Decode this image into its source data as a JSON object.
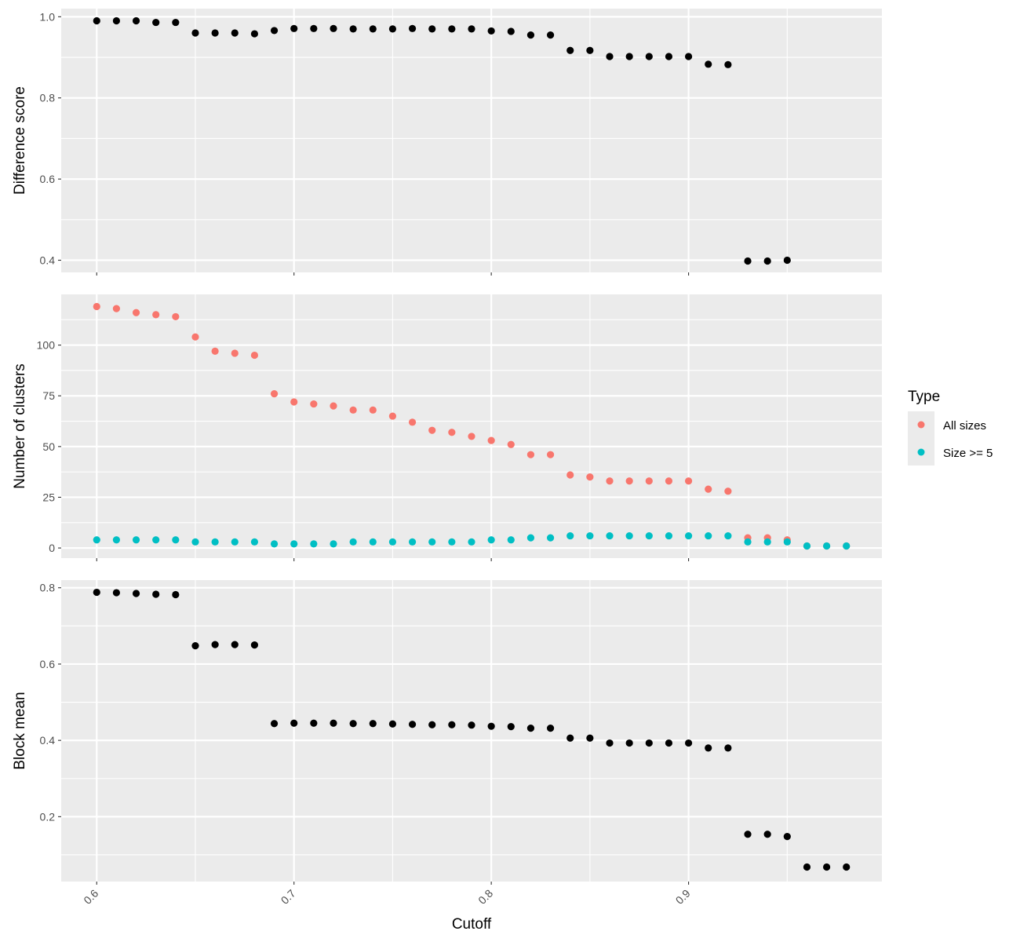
{
  "chart_data": {
    "type": "scatter",
    "layout": "faceted-vertical",
    "shared_x": {
      "label": "Cutoff",
      "range": [
        0.582,
        0.998
      ],
      "ticks": [
        0.6,
        0.7,
        0.8,
        0.9
      ],
      "tick_labels": [
        "0.6",
        "0.7",
        "0.8",
        "0.9"
      ]
    },
    "panels": [
      {
        "id": "difference",
        "ylabel": "Difference score",
        "ylim": [
          0.37,
          1.02
        ],
        "yticks": [
          0.4,
          0.6,
          0.8,
          1.0
        ],
        "ytick_labels": [
          "0.4",
          "0.6",
          "0.8",
          "1.0"
        ],
        "series": [
          {
            "color": "#000000",
            "points": [
              [
                0.6,
                0.99
              ],
              [
                0.61,
                0.99
              ],
              [
                0.62,
                0.99
              ],
              [
                0.63,
                0.986
              ],
              [
                0.64,
                0.986
              ],
              [
                0.65,
                0.96
              ],
              [
                0.66,
                0.96
              ],
              [
                0.67,
                0.96
              ],
              [
                0.68,
                0.958
              ],
              [
                0.69,
                0.966
              ],
              [
                0.7,
                0.971
              ],
              [
                0.71,
                0.971
              ],
              [
                0.72,
                0.971
              ],
              [
                0.73,
                0.97
              ],
              [
                0.74,
                0.97
              ],
              [
                0.75,
                0.97
              ],
              [
                0.76,
                0.971
              ],
              [
                0.77,
                0.97
              ],
              [
                0.78,
                0.97
              ],
              [
                0.79,
                0.97
              ],
              [
                0.8,
                0.965
              ],
              [
                0.81,
                0.964
              ],
              [
                0.82,
                0.955
              ],
              [
                0.83,
                0.955
              ],
              [
                0.84,
                0.917
              ],
              [
                0.85,
                0.917
              ],
              [
                0.86,
                0.902
              ],
              [
                0.87,
                0.902
              ],
              [
                0.88,
                0.902
              ],
              [
                0.89,
                0.902
              ],
              [
                0.9,
                0.902
              ],
              [
                0.91,
                0.883
              ],
              [
                0.92,
                0.882
              ],
              [
                0.93,
                0.398
              ],
              [
                0.94,
                0.398
              ],
              [
                0.95,
                0.4
              ]
            ]
          }
        ]
      },
      {
        "id": "clusters",
        "ylabel": "Number of clusters",
        "ylim": [
          -5,
          125
        ],
        "yticks": [
          0,
          25,
          50,
          75,
          100
        ],
        "ytick_labels": [
          "0",
          "25",
          "50",
          "75",
          "100"
        ],
        "series": [
          {
            "name": "All sizes",
            "color": "#F8766D",
            "points": [
              [
                0.6,
                119
              ],
              [
                0.61,
                118
              ],
              [
                0.62,
                116
              ],
              [
                0.63,
                115
              ],
              [
                0.64,
                114
              ],
              [
                0.65,
                104
              ],
              [
                0.66,
                97
              ],
              [
                0.67,
                96
              ],
              [
                0.68,
                95
              ],
              [
                0.69,
                76
              ],
              [
                0.7,
                72
              ],
              [
                0.71,
                71
              ],
              [
                0.72,
                70
              ],
              [
                0.73,
                68
              ],
              [
                0.74,
                68
              ],
              [
                0.75,
                65
              ],
              [
                0.76,
                62
              ],
              [
                0.77,
                58
              ],
              [
                0.78,
                57
              ],
              [
                0.79,
                55
              ],
              [
                0.8,
                53
              ],
              [
                0.81,
                51
              ],
              [
                0.82,
                46
              ],
              [
                0.83,
                46
              ],
              [
                0.84,
                36
              ],
              [
                0.85,
                35
              ],
              [
                0.86,
                33
              ],
              [
                0.87,
                33
              ],
              [
                0.88,
                33
              ],
              [
                0.89,
                33
              ],
              [
                0.9,
                33
              ],
              [
                0.91,
                29
              ],
              [
                0.92,
                28
              ],
              [
                0.93,
                5
              ],
              [
                0.94,
                5
              ],
              [
                0.95,
                4
              ],
              [
                0.96,
                1
              ],
              [
                0.97,
                1
              ],
              [
                0.98,
                1
              ]
            ]
          },
          {
            "name": "Size >= 5",
            "color": "#00BFC4",
            "points": [
              [
                0.6,
                4
              ],
              [
                0.61,
                4
              ],
              [
                0.62,
                4
              ],
              [
                0.63,
                4
              ],
              [
                0.64,
                4
              ],
              [
                0.65,
                3
              ],
              [
                0.66,
                3
              ],
              [
                0.67,
                3
              ],
              [
                0.68,
                3
              ],
              [
                0.69,
                2
              ],
              [
                0.7,
                2
              ],
              [
                0.71,
                2
              ],
              [
                0.72,
                2
              ],
              [
                0.73,
                3
              ],
              [
                0.74,
                3
              ],
              [
                0.75,
                3
              ],
              [
                0.76,
                3
              ],
              [
                0.77,
                3
              ],
              [
                0.78,
                3
              ],
              [
                0.79,
                3
              ],
              [
                0.8,
                4
              ],
              [
                0.81,
                4
              ],
              [
                0.82,
                5
              ],
              [
                0.83,
                5
              ],
              [
                0.84,
                6
              ],
              [
                0.85,
                6
              ],
              [
                0.86,
                6
              ],
              [
                0.87,
                6
              ],
              [
                0.88,
                6
              ],
              [
                0.89,
                6
              ],
              [
                0.9,
                6
              ],
              [
                0.91,
                6
              ],
              [
                0.92,
                6
              ],
              [
                0.93,
                3
              ],
              [
                0.94,
                3
              ],
              [
                0.95,
                3
              ],
              [
                0.96,
                1
              ],
              [
                0.97,
                1
              ],
              [
                0.98,
                1
              ]
            ]
          }
        ]
      },
      {
        "id": "block",
        "ylabel": "Block mean",
        "ylim": [
          0.03,
          0.82
        ],
        "yticks": [
          0.2,
          0.4,
          0.6,
          0.8
        ],
        "ytick_labels": [
          "0.2",
          "0.4",
          "0.6",
          "0.8"
        ],
        "series": [
          {
            "color": "#000000",
            "points": [
              [
                0.6,
                0.788
              ],
              [
                0.61,
                0.787
              ],
              [
                0.62,
                0.785
              ],
              [
                0.63,
                0.783
              ],
              [
                0.64,
                0.782
              ],
              [
                0.65,
                0.648
              ],
              [
                0.66,
                0.651
              ],
              [
                0.67,
                0.651
              ],
              [
                0.68,
                0.65
              ],
              [
                0.69,
                0.444
              ],
              [
                0.7,
                0.445
              ],
              [
                0.71,
                0.445
              ],
              [
                0.72,
                0.445
              ],
              [
                0.73,
                0.444
              ],
              [
                0.74,
                0.444
              ],
              [
                0.75,
                0.443
              ],
              [
                0.76,
                0.442
              ],
              [
                0.77,
                0.441
              ],
              [
                0.78,
                0.441
              ],
              [
                0.79,
                0.44
              ],
              [
                0.8,
                0.437
              ],
              [
                0.81,
                0.436
              ],
              [
                0.82,
                0.432
              ],
              [
                0.83,
                0.432
              ],
              [
                0.84,
                0.406
              ],
              [
                0.85,
                0.406
              ],
              [
                0.86,
                0.393
              ],
              [
                0.87,
                0.393
              ],
              [
                0.88,
                0.393
              ],
              [
                0.89,
                0.393
              ],
              [
                0.9,
                0.393
              ],
              [
                0.91,
                0.38
              ],
              [
                0.92,
                0.38
              ],
              [
                0.93,
                0.154
              ],
              [
                0.94,
                0.154
              ],
              [
                0.95,
                0.148
              ],
              [
                0.96,
                0.068
              ],
              [
                0.97,
                0.068
              ],
              [
                0.98,
                0.068
              ]
            ]
          }
        ]
      }
    ],
    "legend": {
      "title": "Type",
      "placement": "right",
      "items": [
        {
          "label": "All sizes",
          "color": "#F8766D"
        },
        {
          "label": "Size >= 5",
          "color": "#00BFC4"
        }
      ]
    },
    "style": {
      "panel_background": "#EBEBEB",
      "grid_color": "#FFFFFF",
      "grid": true
    }
  }
}
